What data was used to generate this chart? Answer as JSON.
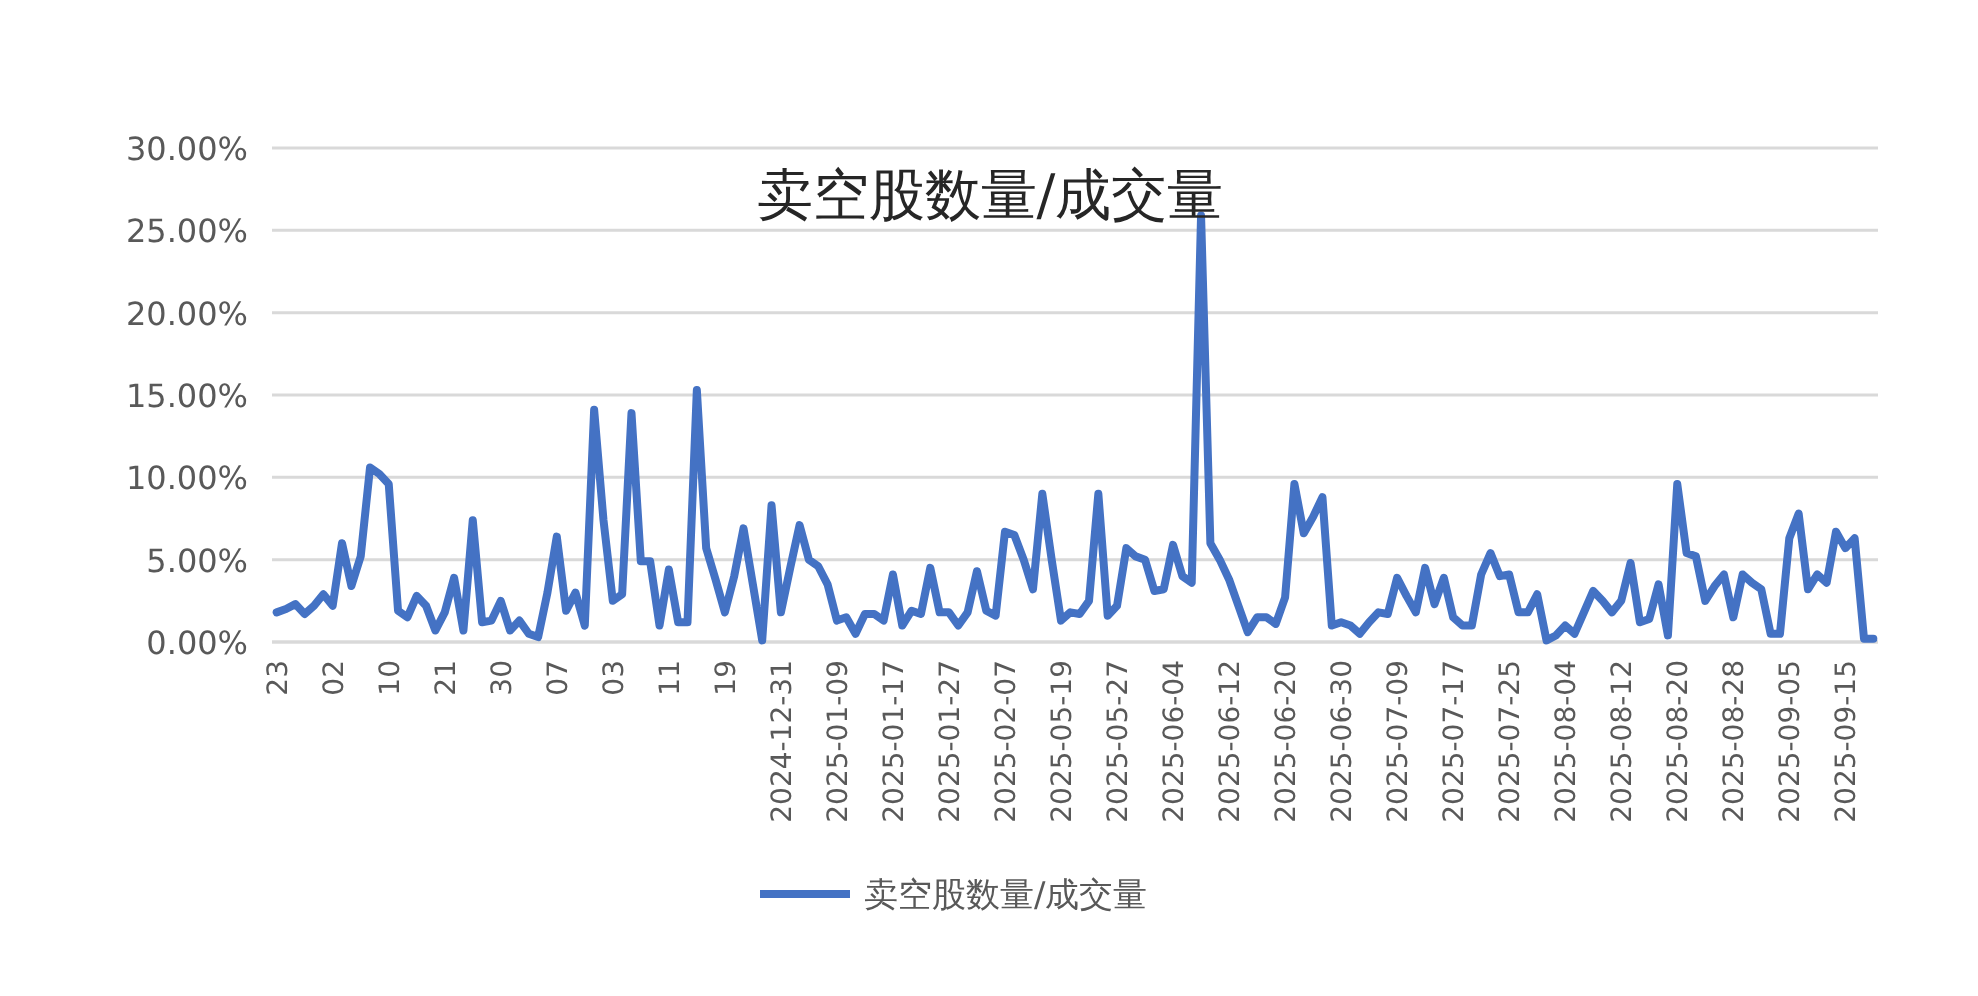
{
  "chart_data": {
    "type": "line",
    "title": "卖空股数量/成交量",
    "categories": [
      "23",
      null,
      null,
      null,
      null,
      null,
      "02",
      null,
      null,
      null,
      null,
      null,
      "10",
      null,
      null,
      null,
      null,
      null,
      "21",
      null,
      null,
      null,
      null,
      null,
      "30",
      null,
      null,
      null,
      null,
      null,
      "07",
      null,
      null,
      null,
      null,
      null,
      "03",
      null,
      null,
      null,
      null,
      null,
      "11",
      null,
      null,
      null,
      null,
      null,
      "19",
      null,
      null,
      null,
      null,
      null,
      "2024-12-31",
      null,
      null,
      null,
      null,
      null,
      "2025-01-09",
      null,
      null,
      null,
      null,
      null,
      "2025-01-17",
      null,
      null,
      null,
      null,
      null,
      "2025-01-27",
      null,
      null,
      null,
      null,
      null,
      "2025-02-07",
      null,
      null,
      null,
      null,
      null,
      "2025-05-19",
      null,
      null,
      null,
      null,
      null,
      "2025-05-27",
      null,
      null,
      null,
      null,
      null,
      "2025-06-04",
      null,
      null,
      null,
      null,
      null,
      "2025-06-12",
      null,
      null,
      null,
      null,
      null,
      "2025-06-20",
      null,
      null,
      null,
      null,
      null,
      "2025-06-30",
      null,
      null,
      null,
      null,
      null,
      "2025-07-09",
      null,
      null,
      null,
      null,
      null,
      "2025-07-17",
      null,
      null,
      null,
      null,
      null,
      "2025-07-25",
      null,
      null,
      null,
      null,
      null,
      "2025-08-04",
      null,
      null,
      null,
      null,
      null,
      "2025-08-12",
      null,
      null,
      null,
      null,
      null,
      "2025-08-20",
      null,
      null,
      null,
      null,
      null,
      "2025-08-28",
      null,
      null,
      null,
      null,
      null,
      "2025-09-05",
      null,
      null,
      null,
      null,
      null,
      "2025-09-15",
      null,
      null,
      null
    ],
    "series": [
      {
        "name": "卖空股数量/成交量",
        "color": "#4472c4",
        "values": [
          1.8,
          2.0,
          2.3,
          1.7,
          2.2,
          2.9,
          2.2,
          6.0,
          3.4,
          5.2,
          10.6,
          10.2,
          9.6,
          1.9,
          1.5,
          2.8,
          2.2,
          0.7,
          1.8,
          3.9,
          0.7,
          7.4,
          1.2,
          1.3,
          2.5,
          0.7,
          1.3,
          0.5,
          0.3,
          3.0,
          6.4,
          1.9,
          3.0,
          1.0,
          14.1,
          7.4,
          2.5,
          2.9,
          13.9,
          4.9,
          4.9,
          1.0,
          4.4,
          1.2,
          1.2,
          15.3,
          5.7,
          3.8,
          1.8,
          4.0,
          6.9,
          3.5,
          0.1,
          8.3,
          1.8,
          4.5,
          7.1,
          5.0,
          4.6,
          3.5,
          1.3,
          1.5,
          0.5,
          1.7,
          1.7,
          1.3,
          4.1,
          1.0,
          1.9,
          1.7,
          4.5,
          1.8,
          1.8,
          1.0,
          1.8,
          4.3,
          1.9,
          1.6,
          6.7,
          6.5,
          5.0,
          3.2,
          9.0,
          5.0,
          1.3,
          1.8,
          1.7,
          2.5,
          9.0,
          1.6,
          2.2,
          5.7,
          5.2,
          5.0,
          3.1,
          3.2,
          5.9,
          4.0,
          3.6,
          25.9,
          6.0,
          5.0,
          3.8,
          2.2,
          0.6,
          1.5,
          1.5,
          1.1,
          2.7,
          9.6,
          6.6,
          7.6,
          8.8,
          1.0,
          1.2,
          1.0,
          0.5,
          1.2,
          1.8,
          1.7,
          3.9,
          2.8,
          1.8,
          4.5,
          2.3,
          3.9,
          1.5,
          1.0,
          1.0,
          4.1,
          5.4,
          4.0,
          4.1,
          1.8,
          1.8,
          2.9,
          0.1,
          0.4,
          1.0,
          0.5,
          1.8,
          3.1,
          2.5,
          1.8,
          2.5,
          4.8,
          1.2,
          1.4,
          3.5,
          0.4,
          9.6,
          5.4,
          5.2,
          2.5,
          3.4,
          4.1,
          1.5,
          4.1,
          3.6,
          3.2,
          0.5,
          0.5,
          6.3,
          7.8,
          3.2,
          4.1,
          3.6,
          6.7,
          5.7,
          6.3,
          0.2,
          0.2
        ]
      }
    ],
    "ylim": [
      0,
      30
    ],
    "yticks": [
      {
        "value": 0,
        "label": "0.00%"
      },
      {
        "value": 5,
        "label": "5.00%"
      },
      {
        "value": 10,
        "label": "10.00%"
      },
      {
        "value": 15,
        "label": "15.00%"
      },
      {
        "value": 20,
        "label": "20.00%"
      },
      {
        "value": 25,
        "label": "25.00%"
      },
      {
        "value": 30,
        "label": "30.00%"
      }
    ],
    "grid": "y",
    "legend": "bottom",
    "marker": "none",
    "line_style": "solid"
  }
}
